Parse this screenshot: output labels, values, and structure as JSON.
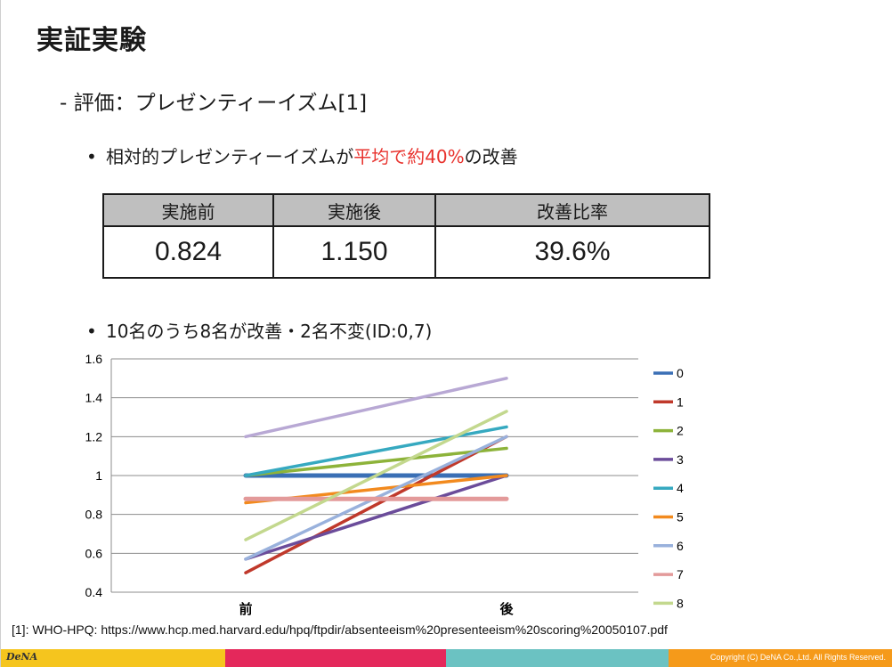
{
  "slide": {
    "title": "実証実験",
    "subtitle": "-  評価：プレゼンティーイズム[1]",
    "bullet1": {
      "marker": "•",
      "prefix": "相対的プレゼンティーイズムが",
      "highlight": "平均で約40%",
      "suffix": "の改善"
    },
    "table": {
      "headers": [
        "実施前",
        "実施後",
        "改善比率"
      ],
      "values": [
        "0.824",
        "1.150",
        "39.6%"
      ]
    },
    "bullet2": {
      "marker": "•",
      "text": "10名のうち8名が改善・2名不変(ID:0,7)"
    },
    "footnote": "[1]: WHO-HPQ: https://www.hcp.med.harvard.edu/hpq/ftpdir/absenteeism%20presenteeism%20scoring%20050107.pdf",
    "footer": {
      "logo": "DeNA",
      "copyright": "Copyright (C) DeNA Co.,Ltd. All Rights Reserved."
    }
  },
  "chart_data": {
    "type": "line",
    "categories": [
      "前",
      "後"
    ],
    "ylim": [
      0.4,
      1.6
    ],
    "yticks": [
      "0.4",
      "0.6",
      "0.8",
      "1",
      "1.2",
      "1.4",
      "1.6"
    ],
    "grid": true,
    "legend_position": "right",
    "series": [
      {
        "name": "0",
        "values": [
          1.0,
          1.0
        ],
        "color": "#3a6fb5"
      },
      {
        "name": "1",
        "values": [
          0.5,
          1.2
        ],
        "color": "#c0392b"
      },
      {
        "name": "2",
        "values": [
          1.0,
          1.14
        ],
        "color": "#8db33a"
      },
      {
        "name": "3",
        "values": [
          0.57,
          1.0
        ],
        "color": "#6b4c9a"
      },
      {
        "name": "4",
        "values": [
          1.0,
          1.25
        ],
        "color": "#36a9c0"
      },
      {
        "name": "5",
        "values": [
          0.86,
          1.0
        ],
        "color": "#f28a1e"
      },
      {
        "name": "6",
        "values": [
          0.57,
          1.2
        ],
        "color": "#99b1dc"
      },
      {
        "name": "7",
        "values": [
          0.88,
          0.88
        ],
        "color": "#e39a9a"
      },
      {
        "name": "8",
        "values": [
          0.67,
          1.33
        ],
        "color": "#c3d88e"
      },
      {
        "name": "",
        "values": [
          1.2,
          1.5
        ],
        "color": "#b8a8d4"
      }
    ]
  }
}
